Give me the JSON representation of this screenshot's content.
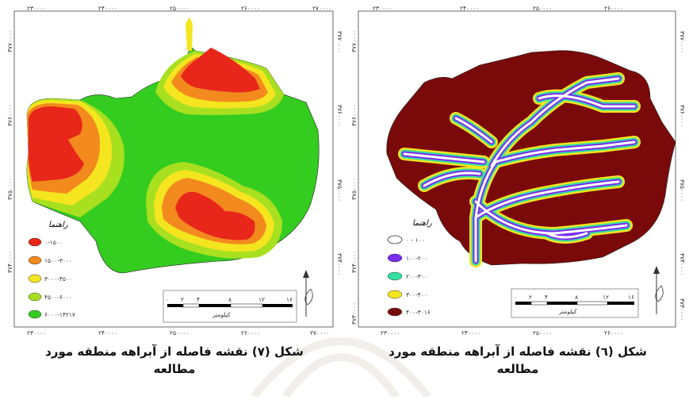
{
  "left_map": {
    "caption_line1": "شکل (۷) نقشه فاصله از آبراهه منطقه مورد",
    "caption_line2": "مطالعه",
    "top_ticks": [
      "۲۳۰۰۰۰",
      "۲۴۰۰۰۰",
      "۲۵۰۰۰۰",
      "۲۶۰۰۰۰",
      "۲۷۰۰۰۰"
    ],
    "bottom_ticks": [
      "۲۳۰۰۰۰",
      "۲۴۰۰۰۰",
      "۲۵۰۰۰۰",
      "۲۶۰۰۰۰",
      "۲۷۰۰۰۰"
    ],
    "side_ticks": [
      "۳۷۷۰۰۰۰",
      "۳۷۶۰۰۰۰",
      "۳۷۵۰۰۰۰",
      "۳۷۴۰۰۰۰",
      "۳۷۳۰۰۰۰"
    ],
    "legend_title": "راهنما",
    "legend": [
      {
        "label": "۰-۱۵۰۰",
        "color": "#e8261a"
      },
      {
        "label": "۱۵۰۰-۳۰۰۰",
        "color": "#f28a1e"
      },
      {
        "label": "۳۰۰۰-۴۵۰۰",
        "color": "#f5e51f"
      },
      {
        "label": "۴۵۰۰-۶۰۰۰",
        "color": "#a8e020"
      },
      {
        "label": "۶۰۰۰-۱۴۲۱۷",
        "color": "#33cc1f"
      }
    ],
    "scale_ticks": [
      "۰",
      "۲",
      "۴",
      "۸",
      "۱۲",
      "۱۶"
    ],
    "scale_unit": "کیلومتر"
  },
  "right_map": {
    "caption_line1": "شکل (٦) نقشه فاصله از آبراهه منطقه مورد",
    "caption_line2": "مطالعه",
    "top_ticks": [
      "۲۳۰۰۰۰",
      "۲۴۰۰۰۰",
      "۲۵۰۰۰۰",
      "۲۶۰۰۰۰"
    ],
    "bottom_ticks": [
      "۲۳۰۰۰۰",
      "۲۴۰۰۰۰",
      "۲۵۰۰۰۰",
      "۲۶۰۰۰۰"
    ],
    "side_ticks": [
      "۳۷۷۰۰۰۰",
      "۳۷۶۰۰۰۰",
      "۳۷۵۰۰۰۰",
      "۳۷۴۰۰۰۰",
      "۳۷۳۰۰۰۰"
    ],
    "legend_title": "راهنما",
    "legend": [
      {
        "label": "۰ - ۱۰۰",
        "color": "#ffffff"
      },
      {
        "label": "۱۰۰-۲۰۰",
        "color": "#7b2cf0"
      },
      {
        "label": "۲۰۰-۳۰۰",
        "color": "#33e0a0"
      },
      {
        "label": "۳۰۰-۴۰۰",
        "color": "#f5e51f"
      },
      {
        "label": "۴۰۰-۳۰۱۶",
        "color": "#7a0a0a"
      }
    ],
    "scale_ticks": [
      "۰",
      "۲",
      "۴",
      "۸",
      "۱۲",
      "۱۶"
    ],
    "scale_unit": "کیلومتر"
  }
}
